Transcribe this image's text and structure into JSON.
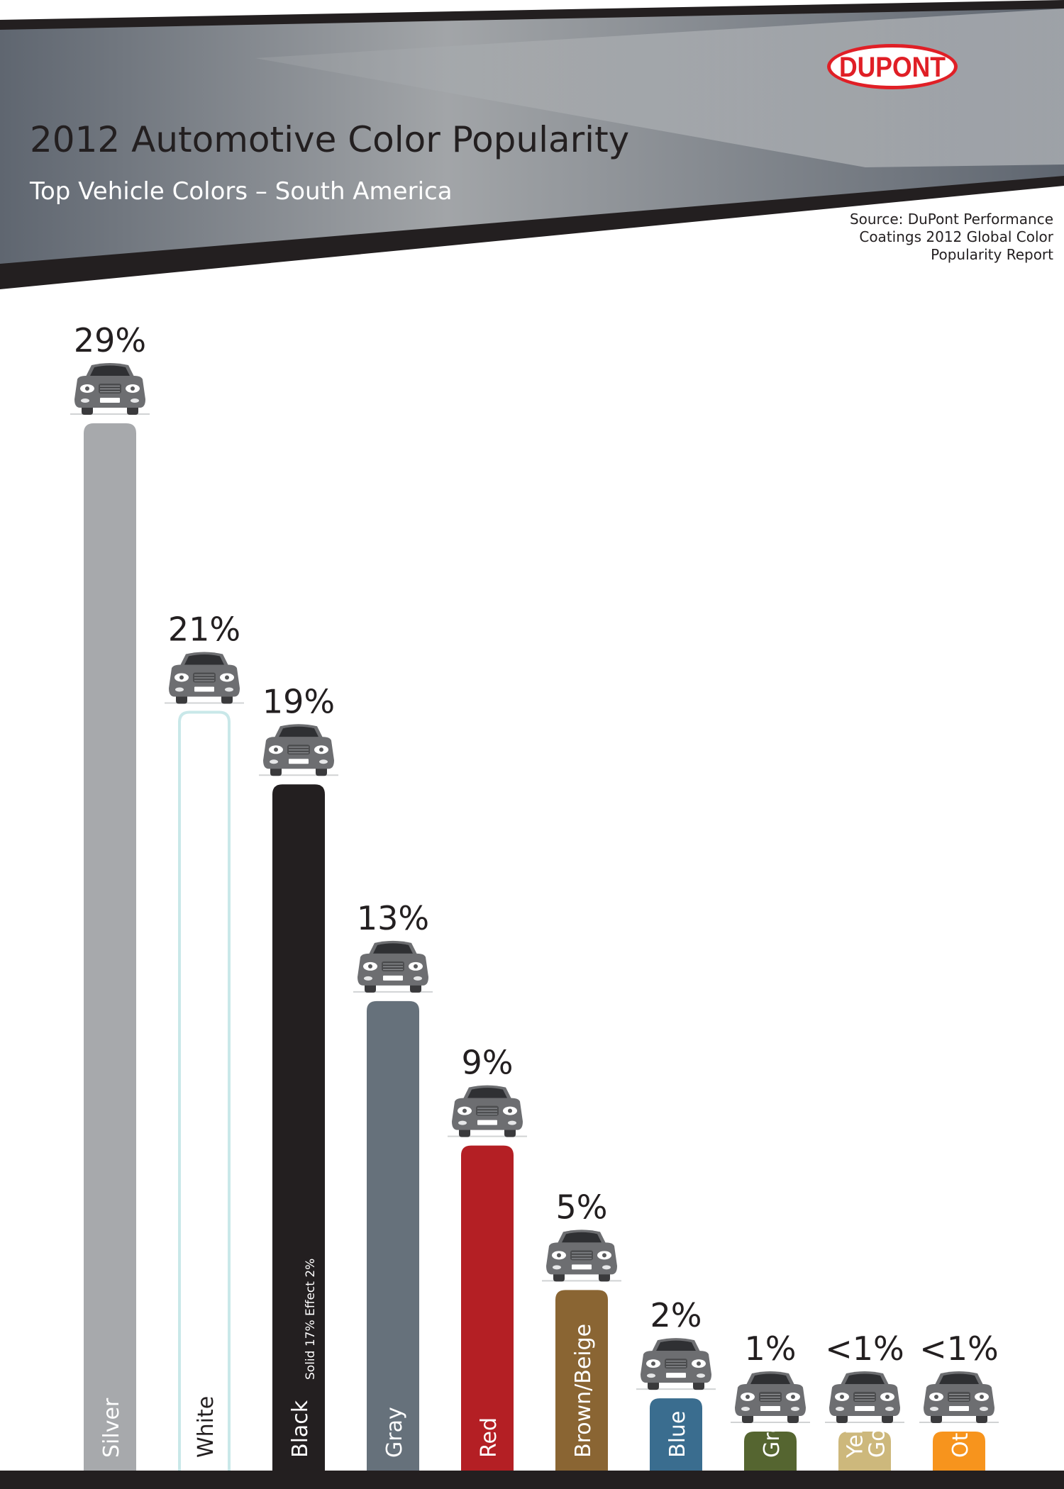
{
  "header": {
    "title": "2012 Automotive Color Popularity",
    "subtitle": "Top Vehicle Colors – South America",
    "source_lines": [
      "Source: DuPont Performance",
      "Coatings 2012 Global Color",
      "Popularity Report"
    ],
    "logo_text": "DUPONT"
  },
  "colors": {
    "header_dark": "#231f20",
    "header_gray": "#5f6670",
    "header_light": "#a2a5a8",
    "logo_red": "#e01f26",
    "car_body": "#6d6e71",
    "bar_label": "#ffffff"
  },
  "chart_data": {
    "type": "bar",
    "title": "2012 Automotive Color Popularity",
    "subtitle": "Top Vehicle Colors – South America",
    "categories": [
      "Silver",
      "White",
      "Black",
      "Gray",
      "Red",
      "Brown/Beige",
      "Blue",
      "Green",
      "Yellow/Gold",
      "Others"
    ],
    "category_labels": [
      [
        "Silver"
      ],
      [
        "White"
      ],
      [
        "Black"
      ],
      [
        "Gray"
      ],
      [
        "Red"
      ],
      [
        "Brown/Beige"
      ],
      [
        "Blue"
      ],
      [
        "Green"
      ],
      [
        "Yellow/",
        "Gold"
      ],
      [
        "Others"
      ]
    ],
    "values": [
      29,
      21,
      19,
      13,
      9,
      5,
      2,
      1,
      0.5,
      0.5
    ],
    "value_labels": [
      "29%",
      "21%",
      "19%",
      "13%",
      "9%",
      "5%",
      "2%",
      "1%",
      "<1%",
      "<1%"
    ],
    "bar_colors": [
      "#a7a9ac",
      "#ffffff",
      "#231f20",
      "#66717b",
      "#b41f24",
      "#8a6533",
      "#3a6d8f",
      "#556530",
      "#cdb87c",
      "#f7941d"
    ],
    "label_colors": [
      "#ffffff",
      "#231f20",
      "#ffffff",
      "#ffffff",
      "#ffffff",
      "#ffffff",
      "#ffffff",
      "#ffffff",
      "#ffffff",
      "#ffffff"
    ],
    "bar_outline": [
      "",
      "#c9e8e9",
      "",
      "",
      "",
      "",
      "",
      "",
      "",
      ""
    ],
    "annotations": [
      {
        "category": "Black",
        "segments": [
          {
            "name": "Solid",
            "value": "17%"
          },
          {
            "name": "Effect",
            "value": "2%"
          }
        ]
      }
    ],
    "ylim": [
      0,
      29
    ],
    "grid": false,
    "legend": "none",
    "xlabel": "",
    "ylabel": ""
  }
}
